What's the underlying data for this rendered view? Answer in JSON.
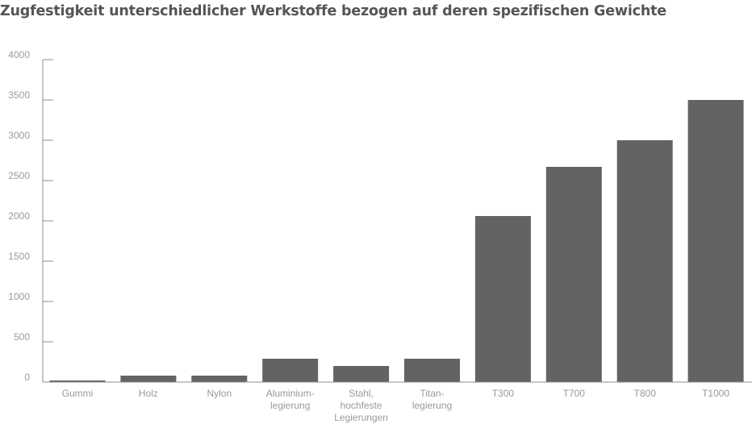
{
  "chart_data": {
    "type": "bar",
    "title": "Zugfestigkeit unterschiedlicher Werkstoffe bezogen auf deren spezifischen Gewichte",
    "xlabel": "",
    "ylabel": "",
    "ylim": [
      0,
      4000
    ],
    "yticks": [
      0,
      500,
      1000,
      1500,
      2000,
      2500,
      3000,
      3500,
      4000
    ],
    "grid": false,
    "categories": [
      [
        "Gummi"
      ],
      [
        "Holz"
      ],
      [
        "Nylon"
      ],
      [
        "Aluminium-",
        "legierung"
      ],
      [
        "Stahl,",
        "hochfeste",
        "Legierungen"
      ],
      [
        "Titan-",
        "legierung"
      ],
      [
        "T300"
      ],
      [
        "T700"
      ],
      [
        "T800"
      ],
      [
        "T1000"
      ]
    ],
    "values": [
      20,
      80,
      80,
      290,
      200,
      290,
      2060,
      2670,
      3000,
      3500
    ],
    "bar_color": "#636363",
    "axis_color": "#8c8c8c",
    "label_color": "#9a9a9a",
    "title_color": "#555555"
  }
}
